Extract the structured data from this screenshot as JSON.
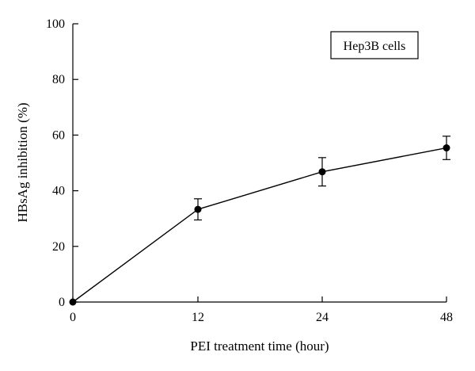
{
  "chart_data": {
    "type": "line",
    "title": "",
    "xlabel": "PEI treatment time (hour)",
    "ylabel": "HBsAg inhibition (%)",
    "x_categories": [
      "0",
      "12",
      "24",
      "48"
    ],
    "yticks": [
      "0",
      "20",
      "40",
      "60",
      "80",
      "100"
    ],
    "ylim": [
      0,
      100
    ],
    "grid": false,
    "legend_position": "top-right",
    "series": [
      {
        "name": "Hep3B cells",
        "values": [
          0,
          33.3,
          46.8,
          55.4
        ],
        "error": [
          0,
          3.8,
          5.1,
          4.2
        ],
        "color": "#000000"
      }
    ]
  }
}
